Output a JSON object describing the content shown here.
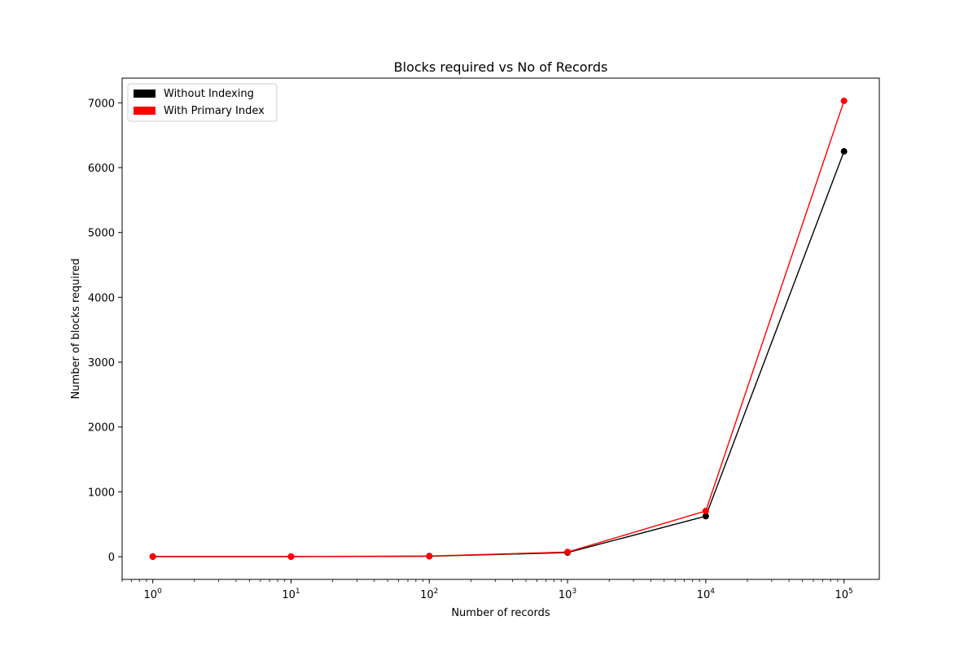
{
  "chart_data": {
    "type": "line",
    "title": "Blocks required vs No of Records",
    "xlabel": "Number of records",
    "ylabel": "Number of blocks required",
    "x_scale": "log",
    "x": [
      1,
      10,
      100,
      1000,
      10000,
      100000
    ],
    "x_tick_labels": [
      {
        "base": "10",
        "exp": "0"
      },
      {
        "base": "10",
        "exp": "1"
      },
      {
        "base": "10",
        "exp": "2"
      },
      {
        "base": "10",
        "exp": "3"
      },
      {
        "base": "10",
        "exp": "4"
      },
      {
        "base": "10",
        "exp": "5"
      }
    ],
    "y_ticks": [
      0,
      1000,
      2000,
      3000,
      4000,
      5000,
      6000,
      7000
    ],
    "y_tick_labels": [
      "0",
      "1000",
      "2000",
      "3000",
      "4000",
      "5000",
      "6000",
      "7000"
    ],
    "xlim": [
      0.6,
      180000
    ],
    "ylim": [
      -350,
      7380
    ],
    "grid": false,
    "legend_position": "top-left",
    "series": [
      {
        "name": "Without Indexing",
        "color": "#000000",
        "values": [
          1,
          1,
          7,
          63,
          625,
          6250
        ]
      },
      {
        "name": "With Primary Index",
        "color": "#ff0000",
        "values": [
          2,
          3,
          10,
          72,
          705,
          7030
        ]
      }
    ]
  }
}
